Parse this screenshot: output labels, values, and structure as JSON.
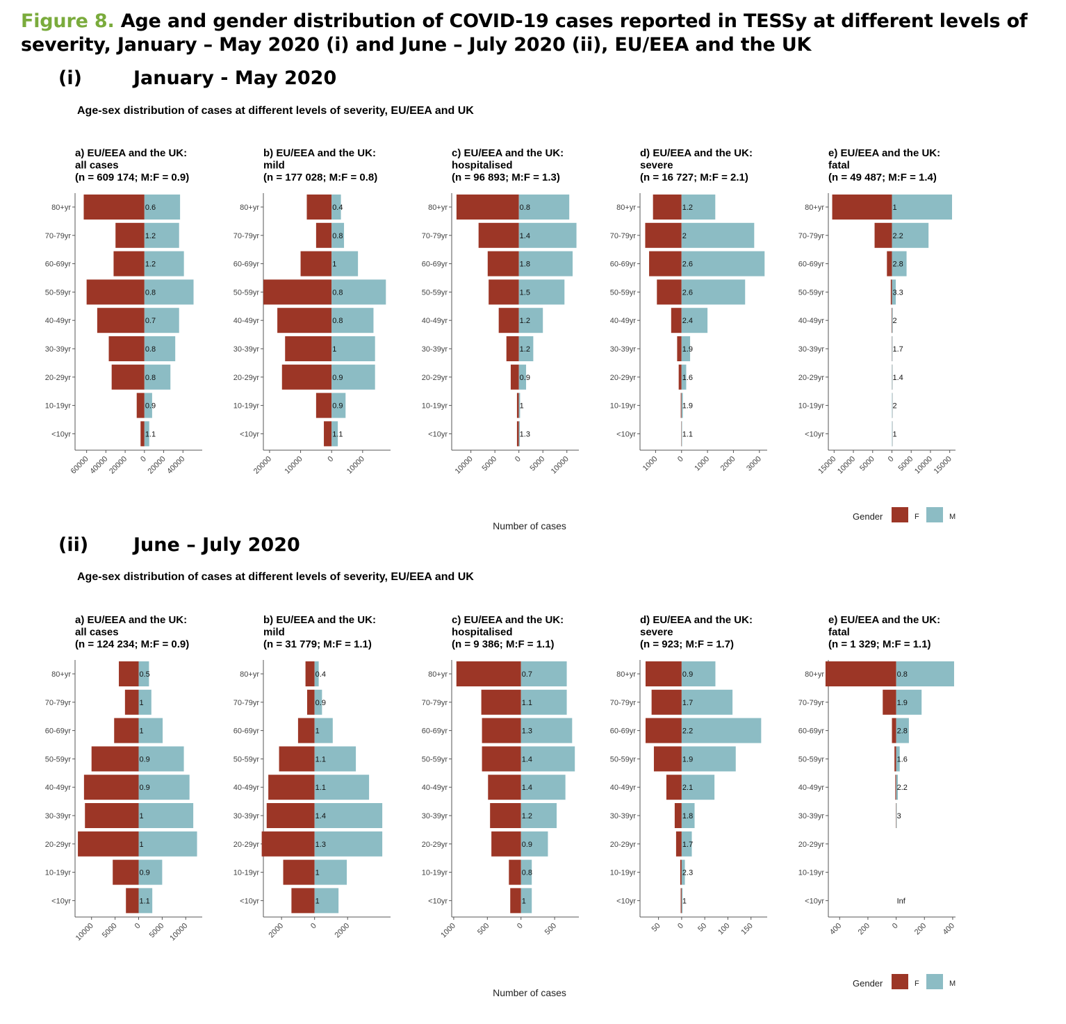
{
  "figure": {
    "label": "Figure 8.",
    "title": "Age and gender distribution of COVID-19 cases reported in TESSy at different levels of severity, January – May 2020 (i) and June – July 2020 (ii), EU/EEA and the UK"
  },
  "colors": {
    "female": "#9c3626",
    "male": "#8cbcc4",
    "axis": "#555555"
  },
  "legend": {
    "title": "Gender",
    "female": "F",
    "male": "M"
  },
  "x_axis_title": "Number of cases",
  "age_groups": [
    "80+yr",
    "70-79yr",
    "60-69yr",
    "50-59yr",
    "40-49yr",
    "30-39yr",
    "20-29yr",
    "10-19yr",
    "<10yr"
  ],
  "sections": [
    {
      "num": "(i)",
      "period": "January - May 2020",
      "subtitle": "Age-sex distribution of cases at different levels of severity, EU/EEA and UK"
    },
    {
      "num": "(ii)",
      "period": "June – July 2020",
      "subtitle": "Age-sex distribution of cases at different levels of severity, EU/EEA and UK"
    }
  ],
  "chart_data": [
    {
      "type": "bar",
      "section": 0,
      "panels": [
        {
          "title": [
            "a) EU/EEA and the UK:",
            "all cases",
            "(n = 609 174; M:F = 0.9)"
          ],
          "xlim": [
            -72000,
            60000
          ],
          "ticks": [
            -60000,
            -40000,
            -20000,
            0,
            20000,
            40000
          ],
          "tick_labels": [
            "60000",
            "40000",
            "20000",
            "0",
            "20000",
            "40000"
          ],
          "female": [
            63000,
            30000,
            32000,
            60000,
            49000,
            37000,
            34000,
            8000,
            4000
          ],
          "male": [
            37000,
            36000,
            41000,
            51000,
            36000,
            32000,
            27000,
            8000,
            5000
          ],
          "ratio": [
            "0.6",
            "1.2",
            "1.2",
            "0.8",
            "0.7",
            "0.8",
            "0.8",
            "0.9",
            "1.1"
          ]
        },
        {
          "title": [
            "b) EU/EEA and the UK:",
            "mild",
            "(n = 177 028; M:F = 0.8)"
          ],
          "xlim": [
            -22000,
            19000
          ],
          "ticks": [
            -20000,
            -10000,
            0,
            10000
          ],
          "tick_labels": [
            "20000",
            "10000",
            "0",
            "10000"
          ],
          "female": [
            8000,
            5000,
            10000,
            22000,
            17500,
            15000,
            16000,
            5000,
            2500
          ],
          "male": [
            3000,
            4000,
            8500,
            17500,
            13500,
            14000,
            14000,
            4500,
            2000
          ],
          "ratio": [
            "0.4",
            "0.8",
            "1",
            "0.8",
            "0.8",
            "1",
            "0.9",
            "0.9",
            "1.1"
          ]
        },
        {
          "title": [
            "c) EU/EEA and the UK:",
            "hospitalised",
            "(n = 96 893; M:F = 1.3)"
          ],
          "xlim": [
            -14000,
            12500
          ],
          "ticks": [
            -10000,
            -5000,
            0,
            5000,
            10000
          ],
          "tick_labels": [
            "10000",
            "5000",
            "0",
            "5000",
            "10000"
          ],
          "female": [
            13000,
            8400,
            6500,
            6300,
            4200,
            2600,
            1700,
            400,
            400
          ],
          "male": [
            10500,
            12000,
            11200,
            9500,
            5000,
            3000,
            1500,
            250,
            200
          ],
          "ratio": [
            "0.8",
            "1.4",
            "1.8",
            "1.5",
            "1.2",
            "1.2",
            "0.9",
            "1",
            "1.3"
          ]
        },
        {
          "title": [
            "d) EU/EEA and the UK:",
            "severe",
            "(n = 16 727; M:F = 2.1)"
          ],
          "xlim": [
            -1600,
            3300
          ],
          "ticks": [
            -1000,
            0,
            1000,
            2000,
            3000
          ],
          "tick_labels": [
            "1000",
            "0",
            "1000",
            "2000",
            "3000"
          ],
          "female": [
            1100,
            1400,
            1250,
            950,
            400,
            170,
            110,
            30,
            10
          ],
          "male": [
            1300,
            2800,
            3200,
            2450,
            1000,
            330,
            180,
            50,
            15
          ],
          "ratio": [
            "1.2",
            "2",
            "2.6",
            "2.6",
            "2.4",
            "1.9",
            "1.6",
            "1.9",
            "1.1"
          ]
        },
        {
          "title": [
            "e) EU/EEA and the UK:",
            "fatal",
            "(n = 49 487; M:F = 1.4)"
          ],
          "xlim": [
            -16500,
            16500
          ],
          "ticks": [
            -15000,
            -10000,
            -5000,
            0,
            5000,
            10000,
            15000
          ],
          "tick_labels": [
            "15000",
            "10000",
            "5000",
            "0",
            "5000",
            "10000",
            "15000"
          ],
          "female": [
            15500,
            4500,
            1300,
            300,
            100,
            40,
            20,
            2,
            1
          ],
          "male": [
            15600,
            9500,
            3800,
            1000,
            200,
            60,
            30,
            4,
            2
          ],
          "ratio": [
            "1",
            "2.2",
            "2.8",
            "3.3",
            "2",
            "1.7",
            "1.4",
            "2",
            "1"
          ]
        }
      ]
    },
    {
      "type": "bar",
      "section": 1,
      "panels": [
        {
          "title": [
            "a) EU/EEA and the UK:",
            "all cases",
            "(n = 124 234; M:F = 0.9)"
          ],
          "xlim": [
            -13500,
            13500
          ],
          "ticks": [
            -10000,
            -5000,
            0,
            5000,
            10000
          ],
          "tick_labels": [
            "10000",
            "5000",
            "0",
            "5000",
            "10000"
          ],
          "female": [
            4200,
            2900,
            5200,
            10000,
            11600,
            11400,
            12900,
            5500,
            2700
          ],
          "male": [
            2200,
            2700,
            5100,
            9600,
            10800,
            11600,
            12400,
            5000,
            2900
          ],
          "ratio": [
            "0.5",
            "1",
            "1",
            "0.9",
            "0.9",
            "1",
            "1",
            "0.9",
            "1.1"
          ]
        },
        {
          "title": [
            "b) EU/EEA and the UK:",
            "mild",
            "(n = 31 779; M:F = 1.1)"
          ],
          "xlim": [
            -3100,
            4600
          ],
          "ticks": [
            -2000,
            0,
            2000
          ],
          "tick_labels": [
            "2000",
            "0",
            "2000"
          ],
          "female": [
            550,
            450,
            1000,
            2150,
            2800,
            2900,
            3200,
            1900,
            1400
          ],
          "male": [
            250,
            450,
            1100,
            2500,
            3300,
            4100,
            4100,
            1950,
            1450
          ],
          "ratio": [
            "0.4",
            "0.9",
            "1",
            "1.1",
            "1.1",
            "1.4",
            "1.3",
            "1",
            "1"
          ]
        },
        {
          "title": [
            "c) EU/EEA and the UK:",
            "hospitalised",
            "(n = 9 386; M:F = 1.1)"
          ],
          "xlim": [
            -1030,
            860
          ],
          "ticks": [
            -1000,
            -500,
            0,
            500
          ],
          "tick_labels": [
            "1000",
            "500",
            "0",
            "500"
          ],
          "female": [
            960,
            590,
            580,
            580,
            490,
            460,
            440,
            180,
            160
          ],
          "male": [
            680,
            680,
            760,
            800,
            660,
            530,
            400,
            160,
            160
          ],
          "ratio": [
            "0.7",
            "1.1",
            "1.3",
            "1.4",
            "1.4",
            "1.2",
            "0.9",
            "0.8",
            "1"
          ]
        },
        {
          "title": [
            "d) EU/EEA and the UK:",
            "severe",
            "(n = 923; M:F = 1.7)"
          ],
          "xlim": [
            -90,
            185
          ],
          "ticks": [
            -50,
            0,
            50,
            100,
            150
          ],
          "tick_labels": [
            "50",
            "0",
            "50",
            "100",
            "150"
          ],
          "female": [
            78,
            65,
            78,
            60,
            33,
            15,
            12,
            3,
            2
          ],
          "male": [
            73,
            110,
            172,
            117,
            71,
            28,
            22,
            7,
            2
          ],
          "ratio": [
            "0.9",
            "1.7",
            "2.2",
            "1.9",
            "2.1",
            "1.8",
            "1.7",
            "2.3",
            "1"
          ]
        },
        {
          "title": [
            "e) EU/EEA and the UK:",
            "fatal",
            "(n = 1 329; M:F = 1.1)"
          ],
          "xlim": [
            -480,
            420
          ],
          "ticks": [
            -400,
            -200,
            0,
            200,
            400
          ],
          "tick_labels": [
            "400",
            "200",
            "0",
            "200",
            "400"
          ],
          "female": [
            500,
            95,
            30,
            12,
            6,
            2,
            0,
            0,
            0
          ],
          "male": [
            410,
            180,
            90,
            25,
            12,
            4,
            0,
            0,
            0
          ],
          "ratio": [
            "0.8",
            "1.9",
            "2.8",
            "1.6",
            "2.2",
            "3",
            "",
            "",
            "Inf"
          ]
        }
      ]
    }
  ]
}
